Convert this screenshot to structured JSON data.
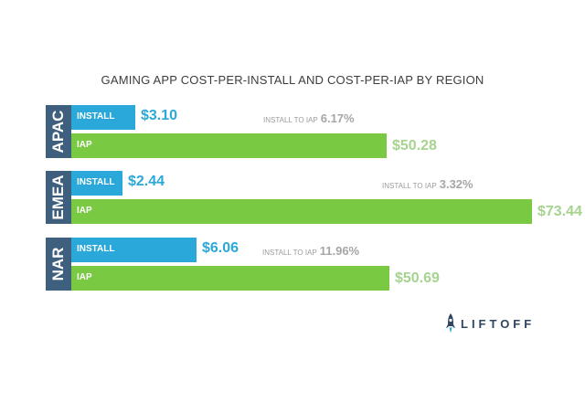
{
  "title": "GAMING APP COST-PER-INSTALL AND COST-PER-IAP BY REGION",
  "colors": {
    "install": "#2aa8d9",
    "iap": "#7ac943",
    "region": "#3e5f7d",
    "ratio_text": "#9b9b9b"
  },
  "logo": {
    "text": "LIFTOFF",
    "icon": "rocket-icon"
  },
  "chart_data": {
    "type": "bar",
    "title": "GAMING APP COST-PER-INSTALL AND COST-PER-IAP BY REGION",
    "categories": [
      "APAC",
      "EMEA",
      "NAR"
    ],
    "series": [
      {
        "name": "INSTALL",
        "values": [
          3.1,
          2.44,
          6.06
        ],
        "labels": [
          "$3.10",
          "$2.44",
          "$6.06"
        ]
      },
      {
        "name": "IAP",
        "values": [
          50.28,
          73.44,
          50.69
        ],
        "labels": [
          "$50.28",
          "$73.44",
          "$50.69"
        ]
      }
    ],
    "install_to_iap": {
      "label": "INSTALL TO IAP",
      "values": [
        "6.17%",
        "3.32%",
        "11.96%"
      ]
    },
    "xlabel": "",
    "ylabel": ""
  },
  "groups": [
    {
      "region": "APAC",
      "install_label": "INSTALL",
      "install_value": "$3.10",
      "iap_label": "IAP",
      "iap_value": "$50.28",
      "ratio_label": "INSTALL TO IAP",
      "ratio_value": "6.17%"
    },
    {
      "region": "EMEA",
      "install_label": "INSTALL",
      "install_value": "$2.44",
      "iap_label": "IAP",
      "iap_value": "$73.44",
      "ratio_label": "INSTALL TO IAP",
      "ratio_value": "3.32%"
    },
    {
      "region": "NAR",
      "install_label": "INSTALL",
      "install_value": "$6.06",
      "iap_label": "IAP",
      "iap_value": "$50.69",
      "ratio_label": "INSTALL TO IAP",
      "ratio_value": "11.96%"
    }
  ]
}
